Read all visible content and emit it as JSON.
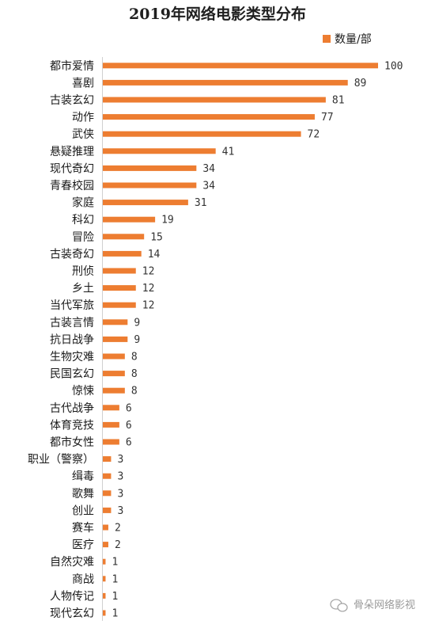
{
  "chart_data": {
    "type": "bar",
    "orientation": "horizontal",
    "title": "2019年网络电影类型分布",
    "legend": {
      "label": "数量/部",
      "position": "top-right"
    },
    "categories": [
      "都市爱情",
      "喜剧",
      "古装玄幻",
      "动作",
      "武侠",
      "悬疑推理",
      "现代奇幻",
      "青春校园",
      "家庭",
      "科幻",
      "冒险",
      "古装奇幻",
      "刑侦",
      "乡土",
      "当代军旅",
      "古装言情",
      "抗日战争",
      "生物灾难",
      "民国玄幻",
      "惊悚",
      "古代战争",
      "体育竞技",
      "都市女性",
      "职业（警察）",
      "缉毒",
      "歌舞",
      "创业",
      "赛车",
      "医疗",
      "自然灾难",
      "商战",
      "人物传记",
      "现代玄幻"
    ],
    "values": [
      100,
      89,
      81,
      77,
      72,
      41,
      34,
      34,
      31,
      19,
      15,
      14,
      12,
      12,
      12,
      9,
      9,
      8,
      8,
      8,
      6,
      6,
      6,
      3,
      3,
      3,
      3,
      2,
      2,
      1,
      1,
      1,
      1
    ],
    "xlim": [
      0,
      100
    ],
    "grid": false,
    "color": "#ED7D31"
  },
  "watermark": {
    "text": "骨朵网络影视",
    "icon": "wechat-icon"
  }
}
